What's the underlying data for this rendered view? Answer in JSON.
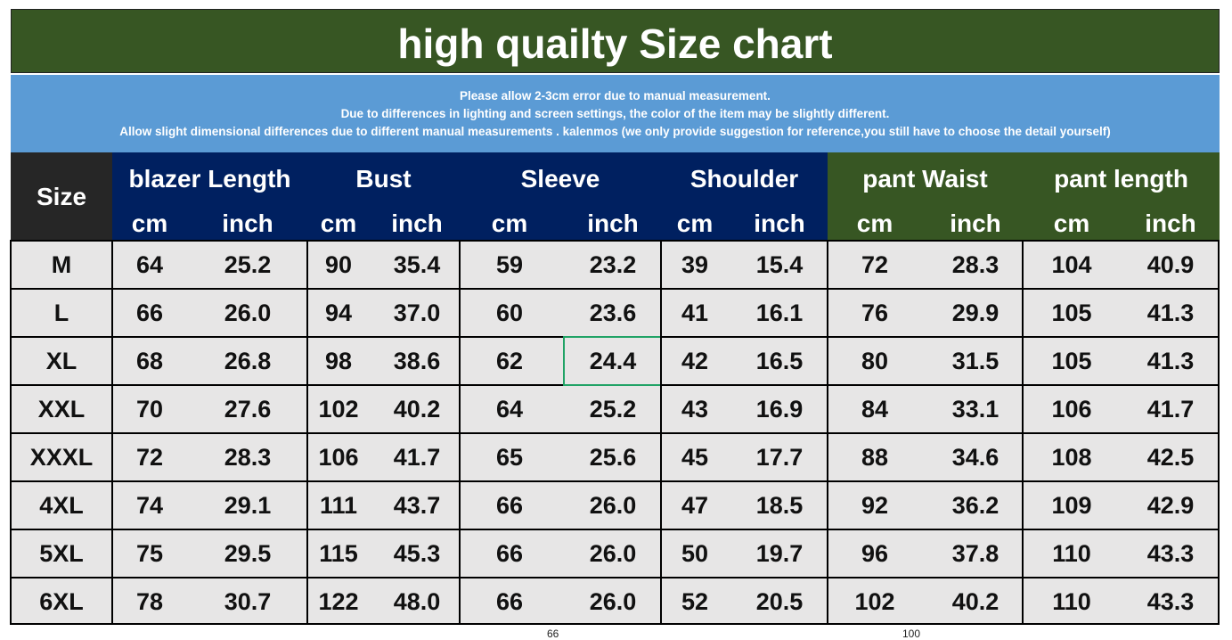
{
  "title": "high quailty Size chart",
  "notes": [
    "Please allow 2-3cm error due to manual measurement.",
    "Due to differences in lighting and screen settings, the color of the item may be slightly different.",
    "Allow slight dimensional differences due to different manual measurements . kalenmos (we only provide suggestion for reference,you still have to choose the detail yourself)"
  ],
  "header": {
    "size": "Size",
    "groups": [
      {
        "label": "blazer Length",
        "cm": "cm",
        "inch": "inch"
      },
      {
        "label": "Bust",
        "cm": "cm",
        "inch": "inch"
      },
      {
        "label": "Sleeve",
        "cm": "cm",
        "inch": "inch"
      },
      {
        "label": "Shoulder",
        "cm": "cm",
        "inch": "inch"
      },
      {
        "label": "pant Waist",
        "cm": "cm",
        "inch": "inch"
      },
      {
        "label": "pant length",
        "cm": "cm",
        "inch": "inch"
      }
    ]
  },
  "rows": [
    [
      "M",
      "64",
      "25.2",
      "90",
      "35.4",
      "59",
      "23.2",
      "39",
      "15.4",
      "72",
      "28.3",
      "104",
      "40.9"
    ],
    [
      "L",
      "66",
      "26.0",
      "94",
      "37.0",
      "60",
      "23.6",
      "41",
      "16.1",
      "76",
      "29.9",
      "105",
      "41.3"
    ],
    [
      "XL",
      "68",
      "26.8",
      "98",
      "38.6",
      "62",
      "24.4",
      "42",
      "16.5",
      "80",
      "31.5",
      "105",
      "41.3"
    ],
    [
      "XXL",
      "70",
      "27.6",
      "102",
      "40.2",
      "64",
      "25.2",
      "43",
      "16.9",
      "84",
      "33.1",
      "106",
      "41.7"
    ],
    [
      "XXXL",
      "72",
      "28.3",
      "106",
      "41.7",
      "65",
      "25.6",
      "45",
      "17.7",
      "88",
      "34.6",
      "108",
      "42.5"
    ],
    [
      "4XL",
      "74",
      "29.1",
      "111",
      "43.7",
      "66",
      "26.0",
      "47",
      "18.5",
      "92",
      "36.2",
      "109",
      "42.9"
    ],
    [
      "5XL",
      "75",
      "29.5",
      "115",
      "45.3",
      "66",
      "26.0",
      "50",
      "19.7",
      "96",
      "37.8",
      "110",
      "43.3"
    ],
    [
      "6XL",
      "78",
      "30.7",
      "122",
      "48.0",
      "66",
      "26.0",
      "52",
      "20.5",
      "102",
      "40.2",
      "110",
      "43.3"
    ]
  ],
  "footer": [
    "66",
    "100"
  ],
  "colors": {
    "title_bg": "#375623",
    "notes_bg": "#5b9bd5",
    "header_navy": "#002060",
    "header_green": "#375623",
    "size_header": "#262626",
    "cell_bg": "#e7e6e6",
    "selection": "#21a366"
  }
}
